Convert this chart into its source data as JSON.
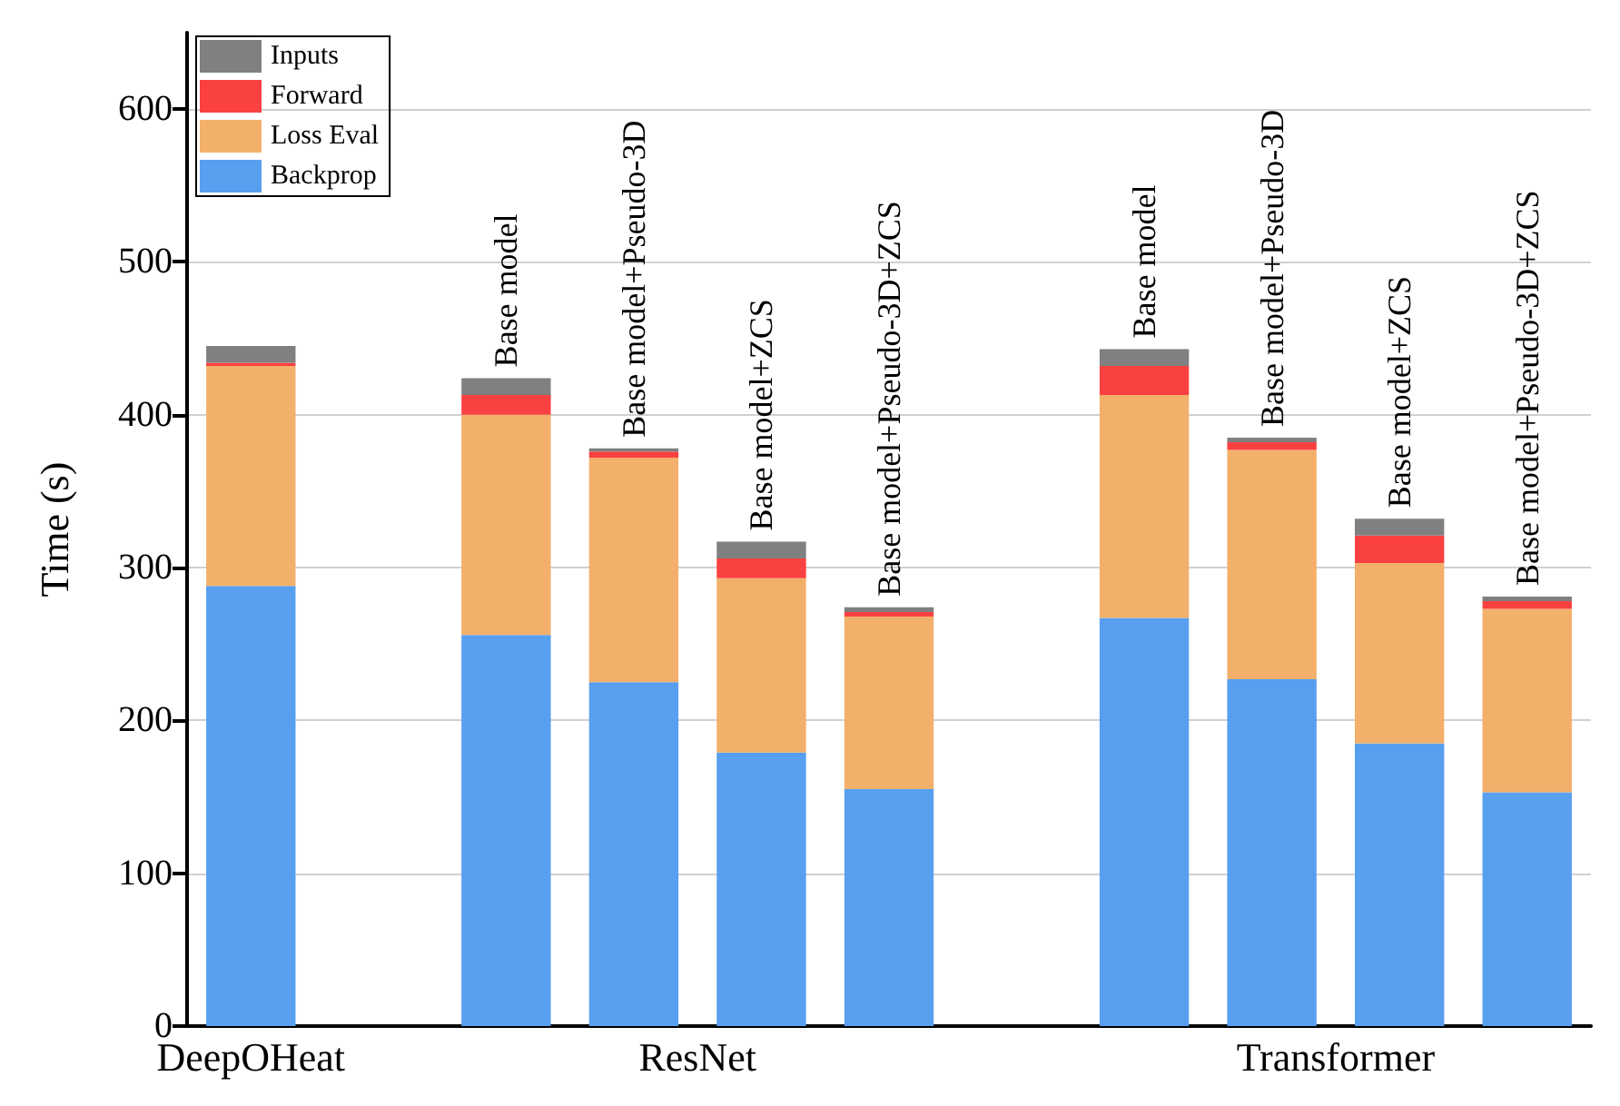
{
  "chart_data": {
    "type": "bar",
    "stacked": true,
    "ylabel": "Time (s)",
    "categories": [
      null,
      null,
      "Base model",
      "Base model+Pseudo-3D",
      "Base model+ZCS",
      "Base model+Pseudo-3D+ZCS",
      null,
      "Base model",
      "Base model+Pseudo-3D",
      "Base model+ZCS",
      "Base model+Pseudo-3D+ZCS"
    ],
    "series": [
      {
        "name": "Backprop",
        "color": "#589ff0",
        "values": [
          288,
          null,
          256,
          225,
          179,
          155,
          null,
          267,
          227,
          185,
          153
        ]
      },
      {
        "name": "Loss Eval",
        "color": "#f2b06a",
        "values": [
          144,
          null,
          144,
          147,
          114,
          113,
          null,
          146,
          150,
          118,
          120
        ]
      },
      {
        "name": "Forward",
        "color": "#fa4141",
        "values": [
          2,
          null,
          13,
          4,
          13,
          3,
          null,
          19,
          5,
          18,
          5
        ]
      },
      {
        "name": "Inputs",
        "color": "#808080",
        "values": [
          11,
          null,
          11,
          2,
          11,
          3,
          null,
          11,
          3,
          11,
          3
        ]
      }
    ],
    "ylim": [
      0,
      650
    ],
    "yticks": [
      0,
      100,
      200,
      300,
      400,
      500,
      600
    ],
    "grid": "y",
    "legend": "top left",
    "annotations": [
      "DeepOHeat",
      "ResNet",
      "Transformer"
    ]
  }
}
